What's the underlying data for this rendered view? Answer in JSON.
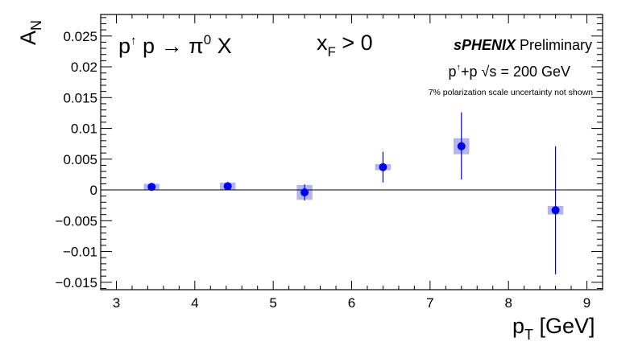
{
  "chart_data": {
    "type": "scatter",
    "title": "",
    "xlabel_main": "p",
    "xlabel_sub": "T",
    "xlabel_unit": " [GeV]",
    "ylabel_main": "A",
    "ylabel_sub": "N",
    "xlim": [
      2.8,
      9.2
    ],
    "ylim": [
      -0.0162,
      0.0285
    ],
    "x_ticks": [
      3,
      4,
      5,
      6,
      7,
      8,
      9
    ],
    "x_tick_labels": [
      "3",
      "4",
      "5",
      "6",
      "7",
      "8",
      "9"
    ],
    "y_ticks": [
      -0.015,
      -0.01,
      -0.005,
      0,
      0.005,
      0.01,
      0.015,
      0.02,
      0.025
    ],
    "y_tick_labels": [
      "−0.015",
      "−0.01",
      "−0.005",
      "0",
      "0.005",
      "0.01",
      "0.015",
      "0.02",
      "0.025"
    ],
    "zero_line": true,
    "grid": false,
    "colors": {
      "marker": "#0000ee",
      "syst_box": "#b4b4f0",
      "axis": "#000000"
    },
    "series": [
      {
        "points": [
          {
            "x": 3.45,
            "y": 0.0005,
            "stat_lo": 0.0001,
            "stat_hi": 0.0009,
            "syst": 0.0005,
            "syst_halfwidth": 0.1
          },
          {
            "x": 4.42,
            "y": 0.0006,
            "stat_lo": 0.0,
            "stat_hi": 0.0013,
            "syst": 0.0006,
            "syst_halfwidth": 0.1
          },
          {
            "x": 5.4,
            "y": -0.0004,
            "stat_lo": -0.0017,
            "stat_hi": 0.0009,
            "syst": 0.0012,
            "syst_halfwidth": 0.1
          },
          {
            "x": 6.4,
            "y": 0.0037,
            "stat_lo": 0.0012,
            "stat_hi": 0.0062,
            "syst": 0.0005,
            "syst_halfwidth": 0.1
          },
          {
            "x": 7.4,
            "y": 0.0071,
            "stat_lo": 0.0017,
            "stat_hi": 0.0126,
            "syst": 0.0013,
            "syst_halfwidth": 0.1
          },
          {
            "x": 8.6,
            "y": -0.0033,
            "stat_lo": -0.0137,
            "stat_hi": 0.0071,
            "syst": 0.0007,
            "syst_halfwidth": 0.1
          }
        ]
      }
    ]
  },
  "annotations": {
    "process": {
      "p1": "p",
      "arrow1": "↑",
      "p2": " p ",
      "arrow2": "→",
      "pion": " π",
      "pion_sup": "0",
      "x": " X"
    },
    "xf": {
      "main": "x",
      "sub": "F",
      "rest": " > 0"
    },
    "experiment": {
      "name": "sPHENIX",
      "status": " Preliminary"
    },
    "beam": {
      "p1": "p",
      "arrow": "↑",
      "rest": "+p  √s = 200 GeV"
    },
    "note": "7% polarization scale uncertainty not shown"
  }
}
